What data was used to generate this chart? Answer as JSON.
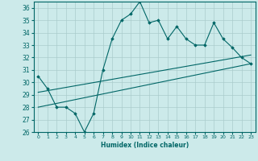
{
  "xlabel": "Humidex (Indice chaleur)",
  "bg_color": "#cceaea",
  "grid_color": "#aacccc",
  "line_color": "#006666",
  "xlim": [
    -0.5,
    23.5
  ],
  "ylim": [
    26,
    36.5
  ],
  "yticks": [
    26,
    27,
    28,
    29,
    30,
    31,
    32,
    33,
    34,
    35,
    36
  ],
  "xticks": [
    0,
    1,
    2,
    3,
    4,
    5,
    6,
    7,
    8,
    9,
    10,
    11,
    12,
    13,
    14,
    15,
    16,
    17,
    18,
    19,
    20,
    21,
    22,
    23
  ],
  "series1_x": [
    0,
    1,
    2,
    3,
    4,
    5,
    6,
    7,
    8,
    9,
    10,
    11,
    12,
    13,
    14,
    15,
    16,
    17,
    18,
    19,
    20,
    21,
    22,
    23
  ],
  "series1_y": [
    30.5,
    29.5,
    28.0,
    28.0,
    27.5,
    26.0,
    27.5,
    31.0,
    33.5,
    35.0,
    35.5,
    36.5,
    34.8,
    35.0,
    33.5,
    34.5,
    33.5,
    33.0,
    33.0,
    34.8,
    33.5,
    32.8,
    32.0,
    31.5
  ],
  "series2_x": [
    0,
    23
  ],
  "series2_y": [
    29.2,
    32.2
  ],
  "series3_x": [
    0,
    23
  ],
  "series3_y": [
    28.0,
    31.5
  ]
}
